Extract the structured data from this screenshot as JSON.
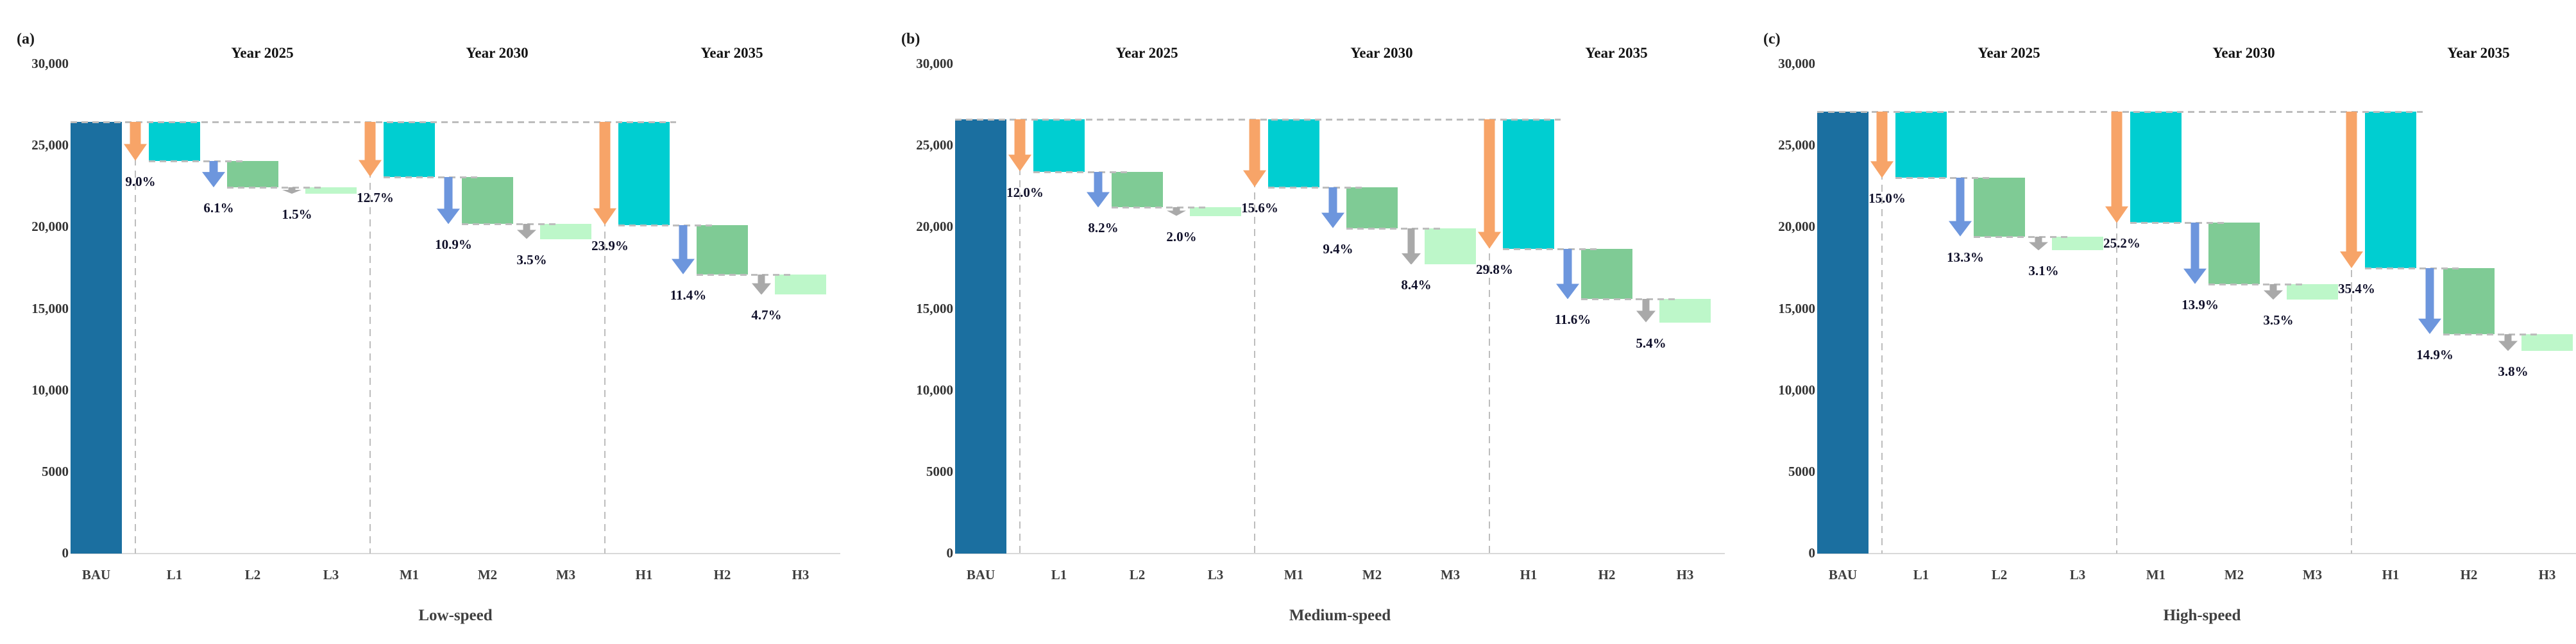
{
  "style": {
    "bau_bar": "#1B6FA0",
    "tier1_bar": "#00CED1",
    "tier2_bar": "#7FCB95",
    "tier3_bar": "#BDF7C9",
    "tier1_arrow": "#F7A468",
    "tier2_arrow": "#6D96DD",
    "tier3_arrow": "#A9A9A9",
    "dashed_line": "#BDBDBD",
    "axis_line": "#D9D9D9"
  },
  "chart_data": [
    {
      "type": "bar",
      "subtype": "waterfall",
      "panel_label": "(a)",
      "title": "Low-speed",
      "group_headers": [
        "Year 2025",
        "Year 2030",
        "Year 2035"
      ],
      "x_categories": [
        "BAU",
        "L1",
        "L2",
        "L3",
        "M1",
        "M2",
        "M3",
        "H1",
        "H2",
        "H3"
      ],
      "ylim": [
        0,
        30000
      ],
      "grid": false,
      "y_ticks": [
        {
          "value": 30000,
          "label": "30,000"
        },
        {
          "value": 25000,
          "label": "25,000"
        },
        {
          "value": 20000,
          "label": "20,000"
        },
        {
          "value": 15000,
          "label": "15,000"
        },
        {
          "value": 10000,
          "label": "10,000"
        },
        {
          "value": 5000,
          "label": "5000"
        },
        {
          "value": 0,
          "label": "0"
        }
      ],
      "bau": {
        "category": "BAU",
        "value": 26450
      },
      "steps": [
        {
          "category": "L1",
          "group": "Year 2025",
          "tier": 1,
          "from": 26450,
          "to": 24070,
          "label": "9.0%"
        },
        {
          "category": "L2",
          "group": "Year 2025",
          "tier": 2,
          "from": 24070,
          "to": 22455,
          "label": "6.1%"
        },
        {
          "category": "L3",
          "group": "Year 2025",
          "tier": 3,
          "from": 22455,
          "to": 22060,
          "label": "1.5%"
        },
        {
          "category": "M1",
          "group": "Year 2030",
          "tier": 1,
          "from": 26450,
          "to": 23090,
          "label": "12.7%"
        },
        {
          "category": "M2",
          "group": "Year 2030",
          "tier": 2,
          "from": 23090,
          "to": 20205,
          "label": "10.9%"
        },
        {
          "category": "M3",
          "group": "Year 2030",
          "tier": 3,
          "from": 20205,
          "to": 19280,
          "label": "3.5%"
        },
        {
          "category": "H1",
          "group": "Year 2035",
          "tier": 1,
          "from": 26450,
          "to": 20130,
          "label": "23.9%"
        },
        {
          "category": "H2",
          "group": "Year 2035",
          "tier": 2,
          "from": 20130,
          "to": 17115,
          "label": "11.4%"
        },
        {
          "category": "H3",
          "group": "Year 2035",
          "tier": 3,
          "from": 17115,
          "to": 15870,
          "label": "4.7%"
        }
      ]
    },
    {
      "type": "bar",
      "subtype": "waterfall",
      "panel_label": "(b)",
      "title": "Medium-speed",
      "group_headers": [
        "Year 2025",
        "Year 2030",
        "Year 2035"
      ],
      "x_categories": [
        "BAU",
        "L1",
        "L2",
        "L3",
        "M1",
        "M2",
        "M3",
        "H1",
        "H2",
        "H3"
      ],
      "ylim": [
        0,
        30000
      ],
      "grid": false,
      "y_ticks": [
        {
          "value": 30000,
          "label": "30,000"
        },
        {
          "value": 25000,
          "label": "25,000"
        },
        {
          "value": 20000,
          "label": "20,000"
        },
        {
          "value": 15000,
          "label": "15,000"
        },
        {
          "value": 10000,
          "label": "10,000"
        },
        {
          "value": 5000,
          "label": "5000"
        },
        {
          "value": 0,
          "label": "0"
        }
      ],
      "bau": {
        "category": "BAU",
        "value": 26600
      },
      "steps": [
        {
          "category": "L1",
          "group": "Year 2025",
          "tier": 1,
          "from": 26600,
          "to": 23410,
          "label": "12.0%"
        },
        {
          "category": "L2",
          "group": "Year 2025",
          "tier": 2,
          "from": 23410,
          "to": 21230,
          "label": "8.2%"
        },
        {
          "category": "L3",
          "group": "Year 2025",
          "tier": 3,
          "from": 21230,
          "to": 20700,
          "label": "2.0%"
        },
        {
          "category": "M1",
          "group": "Year 2030",
          "tier": 1,
          "from": 26600,
          "to": 22450,
          "label": "15.6%"
        },
        {
          "category": "M2",
          "group": "Year 2030",
          "tier": 2,
          "from": 22450,
          "to": 19950,
          "label": "9.4%"
        },
        {
          "category": "M3",
          "group": "Year 2030",
          "tier": 3,
          "from": 19950,
          "to": 17715,
          "label": "8.4%"
        },
        {
          "category": "H1",
          "group": "Year 2035",
          "tier": 1,
          "from": 26600,
          "to": 18675,
          "label": "29.8%"
        },
        {
          "category": "H2",
          "group": "Year 2035",
          "tier": 2,
          "from": 18675,
          "to": 15590,
          "label": "11.6%"
        },
        {
          "category": "H3",
          "group": "Year 2035",
          "tier": 3,
          "from": 15590,
          "to": 14155,
          "label": "5.4%"
        }
      ]
    },
    {
      "type": "bar",
      "subtype": "waterfall",
      "panel_label": "(c)",
      "title": "High-speed",
      "group_headers": [
        "Year 2025",
        "Year 2030",
        "Year 2035"
      ],
      "x_categories": [
        "BAU",
        "L1",
        "L2",
        "L3",
        "M1",
        "M2",
        "M3",
        "H1",
        "H2",
        "H3"
      ],
      "ylim": [
        0,
        30000
      ],
      "grid": false,
      "y_ticks": [
        {
          "value": 30000,
          "label": "30,000"
        },
        {
          "value": 25000,
          "label": "25,000"
        },
        {
          "value": 20000,
          "label": "20,000"
        },
        {
          "value": 15000,
          "label": "15,000"
        },
        {
          "value": 10000,
          "label": "10,000"
        },
        {
          "value": 5000,
          "label": "5000"
        },
        {
          "value": 0,
          "label": "0"
        }
      ],
      "bau": {
        "category": "BAU",
        "value": 27100
      },
      "steps": [
        {
          "category": "L1",
          "group": "Year 2025",
          "tier": 1,
          "from": 27100,
          "to": 23035,
          "label": "15.0%"
        },
        {
          "category": "L2",
          "group": "Year 2025",
          "tier": 2,
          "from": 23035,
          "to": 19430,
          "label": "13.3%"
        },
        {
          "category": "L3",
          "group": "Year 2025",
          "tier": 3,
          "from": 19430,
          "to": 18590,
          "label": "3.1%"
        },
        {
          "category": "M1",
          "group": "Year 2030",
          "tier": 1,
          "from": 27100,
          "to": 20270,
          "label": "25.2%"
        },
        {
          "category": "M2",
          "group": "Year 2030",
          "tier": 2,
          "from": 20270,
          "to": 16505,
          "label": "13.9%"
        },
        {
          "category": "M3",
          "group": "Year 2030",
          "tier": 3,
          "from": 16505,
          "to": 15555,
          "label": "3.5%"
        },
        {
          "category": "H1",
          "group": "Year 2035",
          "tier": 1,
          "from": 27100,
          "to": 17505,
          "label": "35.4%"
        },
        {
          "category": "H2",
          "group": "Year 2035",
          "tier": 2,
          "from": 17505,
          "to": 13465,
          "label": "14.9%"
        },
        {
          "category": "H3",
          "group": "Year 2035",
          "tier": 3,
          "from": 13465,
          "to": 12435,
          "label": "3.8%"
        }
      ]
    }
  ]
}
